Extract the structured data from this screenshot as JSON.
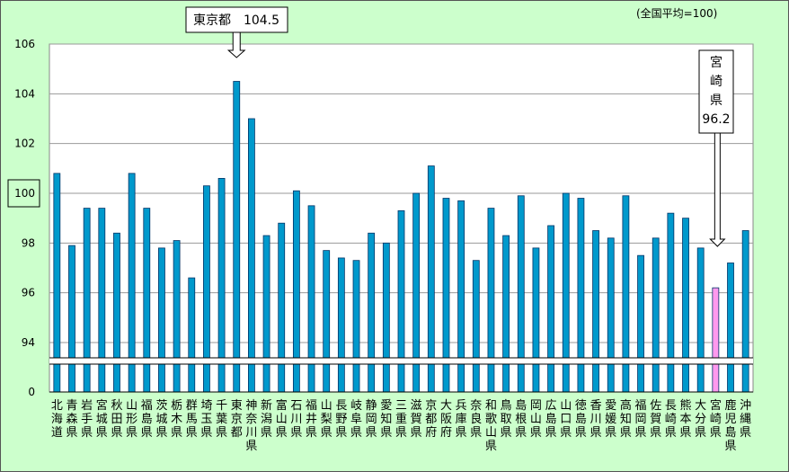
{
  "chart_data": {
    "type": "bar",
    "note": "(全国平均=100)",
    "ylim": [
      92,
      106
    ],
    "yticks": [
      "106",
      "104",
      "102",
      "100",
      "98",
      "96",
      "94",
      "0"
    ],
    "y_axis_break": true,
    "highlight_reference": "100",
    "categories": [
      "北海道",
      "青森県",
      "岩手県",
      "宮城県",
      "秋田県",
      "山形県",
      "福島県",
      "茨城県",
      "栃木県",
      "群馬県",
      "埼玉県",
      "千葉県",
      "東京都",
      "神奈川県",
      "新潟県",
      "富山県",
      "石川県",
      "福井県",
      "山梨県",
      "長野県",
      "岐阜県",
      "静岡県",
      "愛知県",
      "三重県",
      "滋賀県",
      "京都府",
      "大阪府",
      "兵庫県",
      "奈良県",
      "和歌山県",
      "鳥取県",
      "島根県",
      "岡山県",
      "広島県",
      "山口県",
      "徳島県",
      "香川県",
      "愛媛県",
      "高知県",
      "福岡県",
      "佐賀県",
      "長崎県",
      "熊本県",
      "大分県",
      "宮崎県",
      "鹿児島県",
      "沖縄県"
    ],
    "values": [
      100.8,
      97.9,
      99.4,
      99.4,
      98.4,
      100.8,
      99.4,
      97.8,
      98.1,
      96.6,
      100.3,
      100.6,
      104.5,
      103.0,
      98.3,
      98.8,
      100.1,
      99.5,
      97.7,
      97.4,
      97.3,
      98.4,
      98.0,
      99.3,
      100.0,
      101.1,
      99.8,
      99.7,
      97.3,
      99.4,
      98.3,
      99.9,
      97.8,
      98.7,
      100.0,
      99.8,
      98.5,
      98.2,
      99.9,
      97.5,
      98.2,
      99.2,
      99.0,
      97.8,
      96.2,
      97.2,
      98.5
    ],
    "bar_color": "#0099cc",
    "highlight_color": "#ff99ee",
    "highlight_index": 44,
    "callouts": [
      {
        "text": "東京都　104.5",
        "index": 12
      },
      {
        "text": "宮崎県96.2",
        "lines": [
          "宮",
          "崎",
          "県",
          "96.2"
        ],
        "index": 44
      }
    ],
    "background": "#ccffcc",
    "plot_background": "#ffffff"
  }
}
